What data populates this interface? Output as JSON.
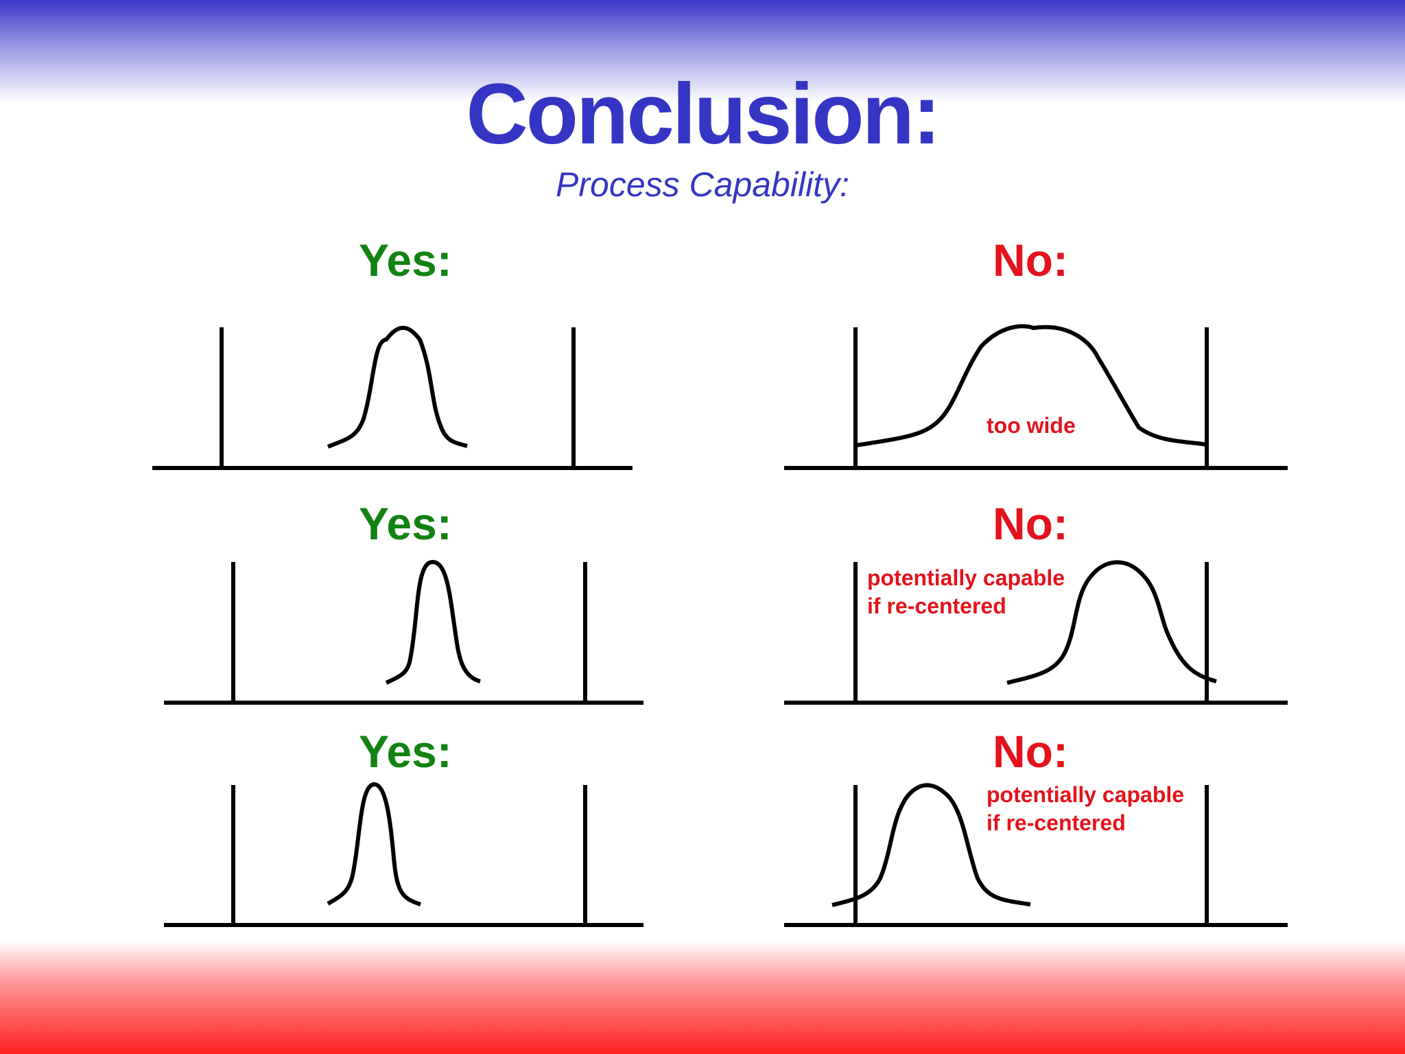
{
  "title": "Conclusion:",
  "subtitle": "Process Capability:",
  "panels": [
    {
      "verdict": "Yes:",
      "note_line1": "",
      "note_line2": ""
    },
    {
      "verdict": "No:",
      "note_line1": "too wide",
      "note_line2": ""
    },
    {
      "verdict": "Yes:",
      "note_line1": "",
      "note_line2": ""
    },
    {
      "verdict": "No:",
      "note_line1": "potentially capable",
      "note_line2": "if re-centered"
    },
    {
      "verdict": "Yes:",
      "note_line1": "",
      "note_line2": ""
    },
    {
      "verdict": "No:",
      "note_line1": "potentially capable",
      "note_line2": "if re-centered"
    }
  ],
  "colors": {
    "title": "#3535c4",
    "yes": "#128212",
    "no": "#e4121b",
    "top_band": "#3a37c8",
    "bottom_band": "#ff2020"
  }
}
